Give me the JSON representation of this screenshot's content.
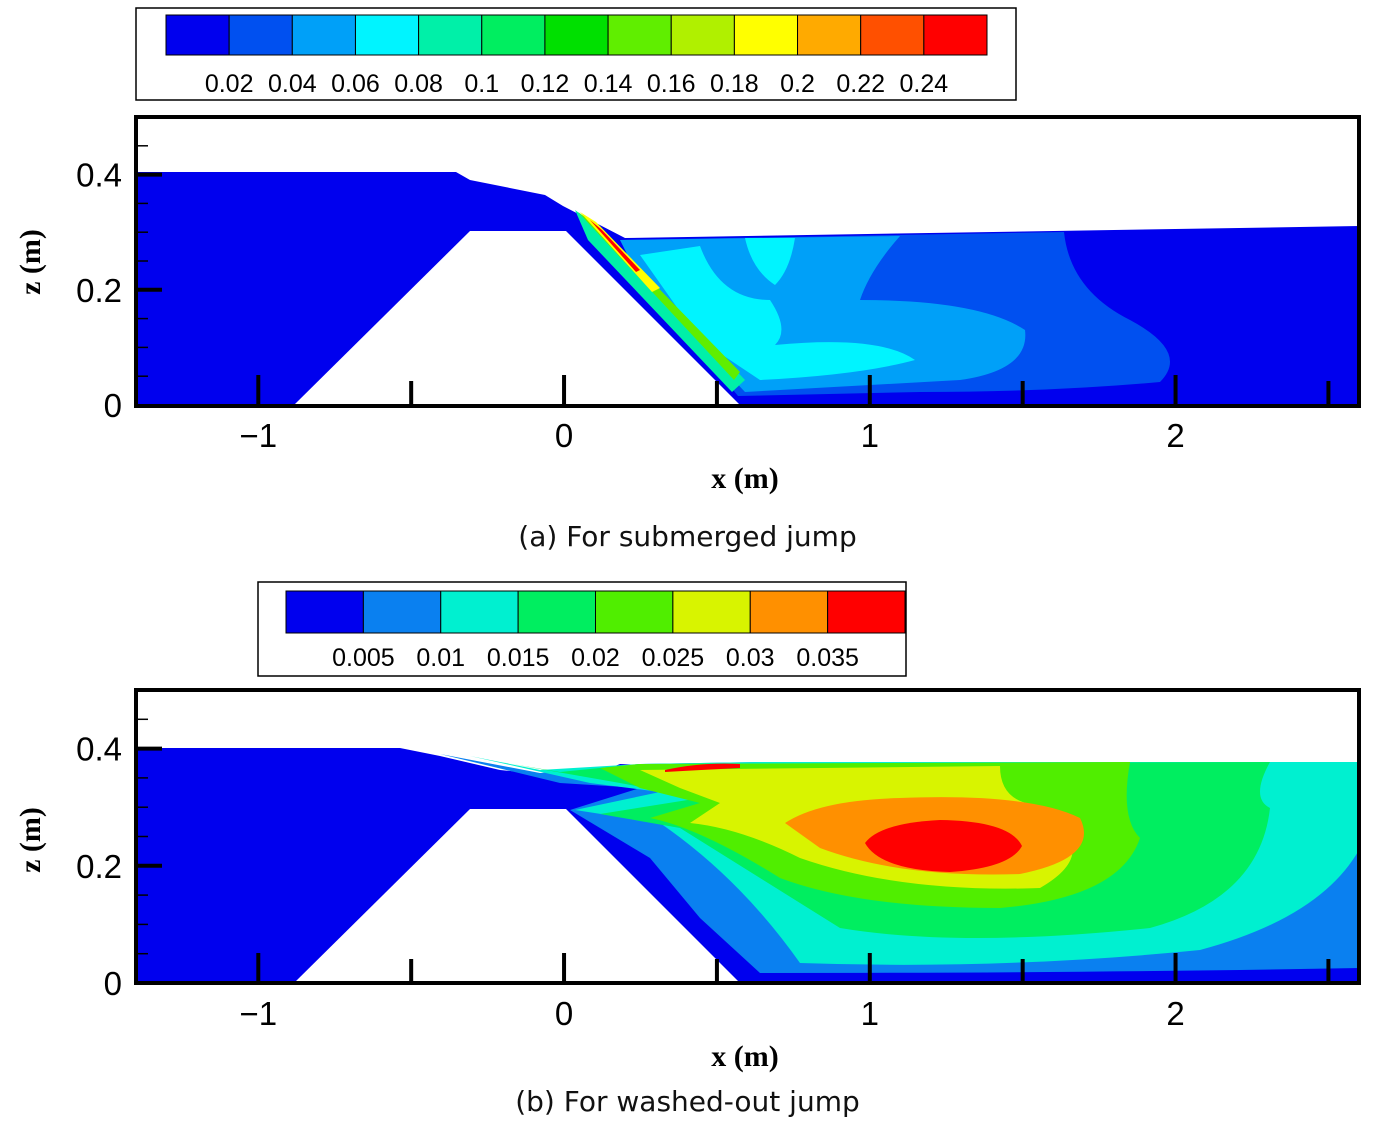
{
  "chart_data": [
    {
      "type": "heatmap",
      "title": "",
      "xlabel": "x (m)",
      "ylabel": "z (m)",
      "xlim": [
        -1.4,
        2.6
      ],
      "ylim": [
        0,
        0.5
      ],
      "xticks": [
        "-1",
        "0",
        "1",
        "2"
      ],
      "xtick_values": [
        -1,
        0,
        1,
        2
      ],
      "yticks": [
        "0",
        "0.2",
        "0.4"
      ],
      "ytick_values": [
        0,
        0.2,
        0.4
      ],
      "grid": false,
      "legend_position": "top",
      "colorbar": {
        "colors": [
          "#0000ee",
          "#0050f0",
          "#00a0f8",
          "#00f4ff",
          "#00f0a8",
          "#00ee60",
          "#00e000",
          "#60ee00",
          "#b0f000",
          "#ffff00",
          "#ffaa00",
          "#ff5000",
          "#ff0000"
        ],
        "labels": [
          "0.02",
          "0.04",
          "0.06",
          "0.08",
          "0.1",
          "0.12",
          "0.14",
          "0.16",
          "0.18",
          "0.2",
          "0.22",
          "0.24"
        ],
        "values": [
          0.02,
          0.04,
          0.06,
          0.08,
          0.1,
          0.12,
          0.14,
          0.16,
          0.18,
          0.2,
          0.22,
          0.24
        ]
      },
      "caption": "(a) For submerged jump"
    },
    {
      "type": "heatmap",
      "title": "",
      "xlabel": "x (m)",
      "ylabel": "z (m)",
      "xlim": [
        -1.4,
        2.6
      ],
      "ylim": [
        0,
        0.5
      ],
      "xticks": [
        "-1",
        "0",
        "1",
        "2"
      ],
      "xtick_values": [
        -1,
        0,
        1,
        2
      ],
      "yticks": [
        "0",
        "0.2",
        "0.4"
      ],
      "ytick_values": [
        0,
        0.2,
        0.4
      ],
      "grid": false,
      "legend_position": "top",
      "colorbar": {
        "colors": [
          "#0000ee",
          "#0a80f0",
          "#00f0d0",
          "#00ee60",
          "#50ee00",
          "#d8f400",
          "#ff9000",
          "#ff0000"
        ],
        "labels": [
          "0.005",
          "0.01",
          "0.015",
          "0.02",
          "0.025",
          "0.03",
          "0.035"
        ],
        "values": [
          0.005,
          0.01,
          0.015,
          0.02,
          0.025,
          0.03,
          0.035
        ]
      },
      "caption": "(b) For washed-out jump"
    }
  ]
}
